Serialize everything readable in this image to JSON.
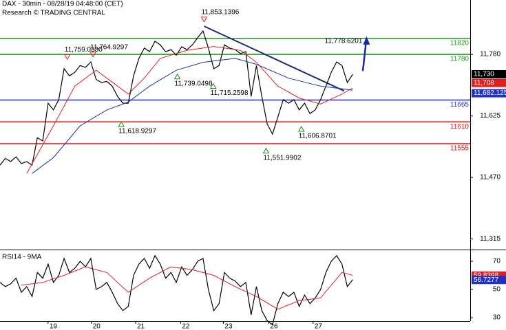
{
  "chart_data": [
    {
      "type": "line",
      "title": "DAX - 30min - 08/28/19 04:48:00 (CET)",
      "subtitle": "Research © TRADING CENTRAL",
      "xlim": [
        0,
        88
      ],
      "ylim": [
        11290,
        11917
      ],
      "yticks": [
        {
          "value": 11780,
          "label": "11,780"
        },
        {
          "value": 11625,
          "label": "11,625"
        },
        {
          "value": 11470,
          "label": "11,470"
        },
        {
          "value": 11315,
          "label": "11,315"
        }
      ],
      "series": [
        {
          "color": "#000000",
          "x": [
            0,
            1,
            2,
            3,
            4,
            5,
            6,
            7,
            8,
            9,
            10,
            11,
            12,
            13,
            14,
            15,
            16,
            17,
            18,
            19,
            20,
            21,
            22,
            23,
            24,
            25,
            26,
            27,
            28,
            29,
            30,
            31,
            32,
            33,
            34,
            35,
            36,
            37,
            38,
            39,
            40,
            41,
            42,
            43,
            44,
            45,
            46,
            47,
            48,
            49,
            50,
            51,
            52,
            53,
            54,
            55,
            56,
            57,
            58,
            59,
            60,
            61,
            62,
            63,
            64,
            65,
            66
          ],
          "values": [
            11501,
            11518,
            11510,
            11522,
            11505,
            11510,
            11501,
            11570,
            11562,
            11657,
            11640,
            11666,
            11744,
            11726,
            11735,
            11752,
            11747,
            11761,
            11717,
            11709,
            11712,
            11700,
            11674,
            11657,
            11657,
            11726,
            11770,
            11796,
            11787,
            11813,
            11804,
            11787,
            11792,
            11778,
            11799,
            11792,
            11804,
            11822,
            11839,
            11796,
            11744,
            11752,
            11804,
            11796,
            11792,
            11782,
            11787,
            11674,
            11752,
            11674,
            11605,
            11579,
            11622,
            11666,
            11657,
            11666,
            11640,
            11657,
            11631,
            11640,
            11666,
            11700,
            11735,
            11761,
            11752,
            11709,
            11730
          ]
        },
        {
          "color": "#e02020",
          "x": [
            5,
            10,
            14,
            18,
            22,
            24,
            27,
            30,
            35,
            40,
            45,
            48,
            52,
            56,
            60,
            64,
            66
          ],
          "values": [
            11480,
            11600,
            11700,
            11740,
            11700,
            11680,
            11720,
            11770,
            11790,
            11800,
            11790,
            11760,
            11700,
            11670,
            11655,
            11680,
            11695
          ]
        },
        {
          "color": "#2030a0",
          "x": [
            6,
            10,
            15,
            20,
            24,
            28,
            33,
            38,
            44,
            48,
            54,
            60,
            66
          ],
          "values": [
            11480,
            11520,
            11600,
            11640,
            11660,
            11700,
            11740,
            11760,
            11770,
            11755,
            11720,
            11700,
            11690
          ]
        }
      ],
      "levels": [
        {
          "value": 11820,
          "color": "#1a9a1a"
        },
        {
          "value": 11780,
          "color": "#1a9a1a"
        },
        {
          "value": 11665,
          "color": "#1f2fb0"
        },
        {
          "value": 11610,
          "color": "#e01010"
        },
        {
          "value": 11555,
          "color": "#e01010"
        }
      ],
      "annotations": [
        {
          "x": 38.2,
          "value": 11853.1396,
          "label": "11,853.1396",
          "kind": "high"
        },
        {
          "x": 12.6,
          "value": 11759.033,
          "label": "11,759.0330",
          "kind": "high"
        },
        {
          "x": 17.4,
          "value": 11764.9297,
          "label": "11,764.9297",
          "kind": "high"
        },
        {
          "x": 33.2,
          "value": 11739.0498,
          "label": "11,739.0498",
          "kind": "low"
        },
        {
          "x": 39.9,
          "value": 11715.2598,
          "label": "11,715.2598",
          "kind": "low"
        },
        {
          "x": 22.7,
          "value": 11618.9297,
          "label": "11,618.9297",
          "kind": "low"
        },
        {
          "x": 49.8,
          "value": 11551.9902,
          "label": "11,551.9902",
          "kind": "low"
        },
        {
          "x": 56.4,
          "value": 11606.8701,
          "label": "11,606.8701",
          "kind": "low"
        }
      ],
      "target": {
        "x": [
          67.9,
          68.6
        ],
        "values": [
          11738,
          11822
        ],
        "value": 11778.6201,
        "label": "11,778.6201",
        "color": "#1a2a9a"
      },
      "trendline": {
        "x": [
          38.2,
          64.4
        ],
        "values": [
          11851,
          11688
        ],
        "color": "#1a2a7a"
      },
      "price_tags": [
        {
          "value": 11730,
          "label": "11,730",
          "color": "#000000"
        },
        {
          "value": 11708,
          "label": "11,708",
          "color": "#e02020"
        },
        {
          "value": 11682.125,
          "label": "11,682.125",
          "color": "#2030c0"
        }
      ]
    },
    {
      "type": "line",
      "title": "RSI14 - 9MA",
      "xlim": [
        0,
        88
      ],
      "ylim": [
        27.6,
        77.3
      ],
      "yticks": [
        70,
        50,
        30
      ],
      "xticks": [
        {
          "value": 9,
          "label": "19"
        },
        {
          "value": 17.1,
          "label": "20"
        },
        {
          "value": 25.4,
          "label": "21"
        },
        {
          "value": 33.8,
          "label": "22"
        },
        {
          "value": 41.8,
          "label": "23"
        },
        {
          "value": 50.3,
          "label": "26"
        },
        {
          "value": 58.6,
          "label": "27"
        }
      ],
      "series": [
        {
          "color": "#000000",
          "x": [
            0,
            1,
            2,
            3,
            4,
            5,
            6,
            7,
            8,
            9,
            10,
            11,
            12,
            13,
            14,
            15,
            16,
            17,
            18,
            19,
            20,
            21,
            22,
            23,
            24,
            25,
            26,
            27,
            28,
            29,
            30,
            31,
            32,
            33,
            34,
            35,
            36,
            37,
            38,
            39,
            40,
            41,
            42,
            43,
            44,
            45,
            46,
            47,
            48,
            49,
            50,
            51,
            52,
            53,
            54,
            55,
            56,
            57,
            58,
            59,
            60,
            61,
            62,
            63,
            64,
            65,
            66
          ],
          "values": [
            55,
            52,
            54,
            58,
            48,
            52,
            45,
            62,
            58,
            68,
            55,
            60,
            72,
            62,
            65,
            70,
            66,
            72,
            50,
            52,
            55,
            48,
            40,
            35,
            38,
            60,
            68,
            72,
            65,
            74,
            68,
            58,
            62,
            55,
            66,
            60,
            64,
            70,
            72,
            50,
            35,
            40,
            62,
            58,
            56,
            52,
            55,
            32,
            52,
            35,
            28,
            25,
            40,
            48,
            45,
            48,
            38,
            46,
            40,
            44,
            50,
            62,
            70,
            74,
            68,
            52,
            57
          ]
        },
        {
          "color": "#e02020",
          "x": [
            4,
            8,
            12,
            16,
            20,
            24,
            28,
            32,
            36,
            40,
            44,
            48,
            52,
            56,
            60,
            64,
            66
          ],
          "values": [
            53,
            55,
            60,
            66,
            62,
            48,
            58,
            66,
            64,
            60,
            52,
            45,
            36,
            42,
            44,
            62,
            60
          ]
        }
      ],
      "price_tags": [
        {
          "value": 59.8398,
          "label": "59.8398",
          "color": "#e02020"
        },
        {
          "value": 56.7277,
          "label": "56.7277",
          "color": "#2030c0"
        }
      ]
    }
  ]
}
